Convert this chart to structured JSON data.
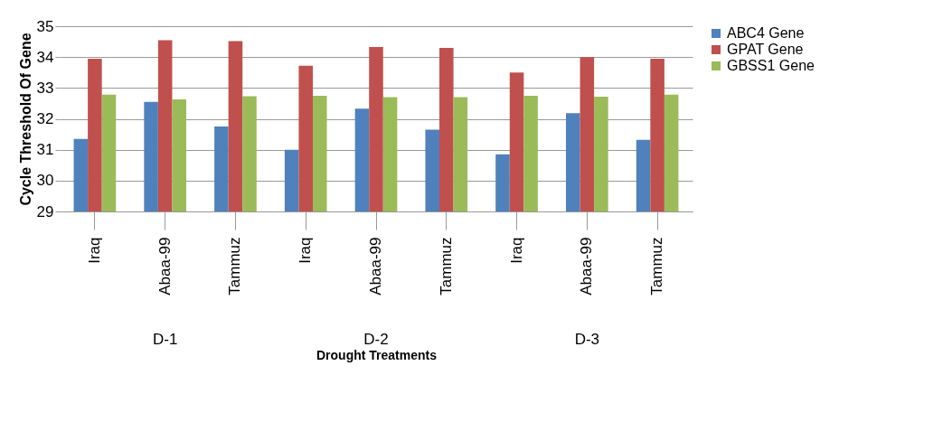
{
  "chart_data": {
    "type": "bar",
    "xlabel": "Drought Treatments",
    "ylabel": "Cycle Threshold Of Gene",
    "categories": [
      "Iraq",
      "Abaa-99",
      "Tammuz",
      "Iraq",
      "Abaa-99",
      "Tammuz",
      "Iraq",
      "Abaa-99",
      "Tammuz"
    ],
    "series": [
      {
        "name": "ABC4 Gene",
        "color": "#4f81bd",
        "values": [
          31.35,
          32.55,
          31.75,
          31.0,
          32.33,
          31.65,
          30.85,
          32.18,
          31.32
        ]
      },
      {
        "name": "GPAT Gene",
        "color": "#c0504d",
        "values": [
          33.95,
          34.55,
          34.52,
          33.72,
          34.33,
          34.3,
          33.5,
          34.0,
          33.95
        ]
      },
      {
        "name": "GBSS1 Gene",
        "color": "#9bbb59",
        "values": [
          32.78,
          32.63,
          32.73,
          32.75,
          32.7,
          32.7,
          32.75,
          32.72,
          32.78
        ]
      }
    ],
    "annotations": [
      "D-1",
      "D-2",
      "D-3"
    ],
    "ylim": [
      29,
      35
    ],
    "yticks": [
      29,
      30,
      31,
      32,
      33,
      34,
      35
    ],
    "grid": "y",
    "legend": "right"
  }
}
